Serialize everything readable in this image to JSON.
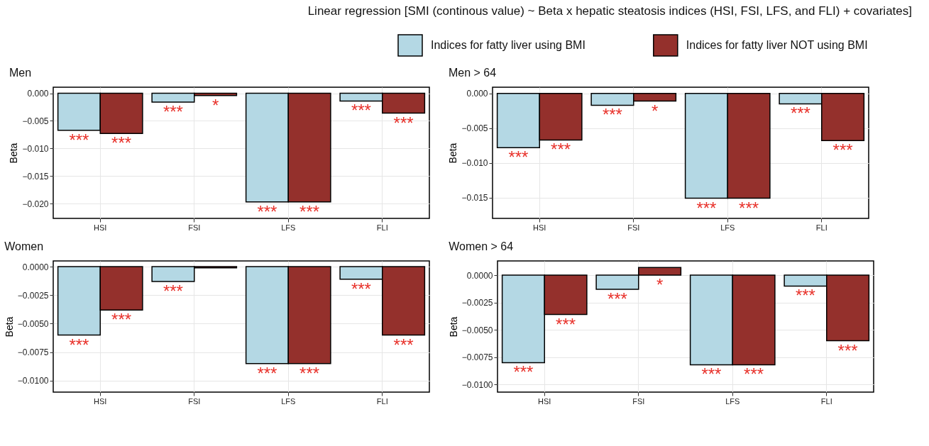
{
  "chart_data": [
    {
      "type": "bar",
      "title": "Men",
      "ylabel": "Beta",
      "annotations": [
        "Linear regression [SMI (continous value) ~ Beta x hepatic steatosis indices (HSI, FSI, LFS, and FLI) + covariates]"
      ],
      "legend": "top right",
      "grid": true,
      "categories": [
        "HSI",
        "FSI",
        "LFS",
        "FLI"
      ],
      "series": [
        {
          "name": "Indices for fatty liver using BMI",
          "color": "#b4d8e4",
          "values": [
            -0.0067,
            -0.0016,
            -0.0197,
            -0.0014
          ],
          "value_labels": [
            "***",
            "***",
            "***",
            "***"
          ]
        },
        {
          "name": "Indices for fatty liver NOT using BMI",
          "color": "#94302c",
          "values": [
            -0.0073,
            -0.0004,
            -0.0197,
            -0.0036
          ],
          "value_labels": [
            "***",
            "*",
            "***",
            "***"
          ]
        }
      ],
      "ylim": [
        -0.0227,
        0.0011
      ],
      "yticks": [
        {
          "value": 0,
          "label": "0.000"
        },
        {
          "value": -0.005,
          "label": "−0.005"
        },
        {
          "value": -0.01,
          "label": "−0.010"
        },
        {
          "value": -0.015,
          "label": "−0.015"
        },
        {
          "value": -0.02,
          "label": "−0.020"
        }
      ]
    },
    {
      "type": "bar",
      "title": "Men > 64",
      "ylabel": "Beta",
      "grid": true,
      "categories": [
        "HSI",
        "FSI",
        "LFS",
        "FLI"
      ],
      "series": [
        {
          "color": "#b4d8e4",
          "values": [
            -0.0078,
            -0.0017,
            -0.0151,
            -0.0015
          ],
          "value_labels": [
            "***",
            "***",
            "***",
            "***"
          ]
        },
        {
          "color": "#94302c",
          "values": [
            -0.0067,
            -0.0011,
            -0.0151,
            -0.0068
          ],
          "value_labels": [
            "***",
            "*",
            "***",
            "***"
          ]
        }
      ],
      "ylim": [
        -0.018,
        0.0009
      ],
      "yticks": [
        {
          "value": 0,
          "label": "0.000"
        },
        {
          "value": -0.005,
          "label": "−0.005"
        },
        {
          "value": -0.01,
          "label": "−0.010"
        },
        {
          "value": -0.015,
          "label": "−0.015"
        }
      ]
    },
    {
      "type": "bar",
      "title": "Women",
      "ylabel": "Beta",
      "grid": true,
      "categories": [
        "HSI",
        "FSI",
        "LFS",
        "FLI"
      ],
      "series": [
        {
          "color": "#b4d8e4",
          "values": [
            -0.006,
            -0.0013,
            -0.0085,
            -0.0011
          ],
          "value_labels": [
            "***",
            "***",
            "***",
            "***"
          ]
        },
        {
          "color": "#94302c",
          "values": [
            -0.0038,
            -0.0001,
            -0.0085,
            -0.006
          ],
          "value_labels": [
            "***",
            null,
            "***",
            "***"
          ]
        }
      ],
      "ylim": [
        -0.011,
        0.0005
      ],
      "yticks": [
        {
          "value": 0,
          "label": "0.0000"
        },
        {
          "value": -0.0025,
          "label": "−0.0025"
        },
        {
          "value": -0.005,
          "label": "−0.0050"
        },
        {
          "value": -0.0075,
          "label": "−0.0075"
        },
        {
          "value": -0.01,
          "label": "−0.0100"
        }
      ]
    },
    {
      "type": "bar",
      "title": "Women > 64",
      "ylabel": "Beta",
      "grid": true,
      "categories": [
        "HSI",
        "FSI",
        "LFS",
        "FLI"
      ],
      "series": [
        {
          "color": "#b4d8e4",
          "values": [
            -0.008,
            -0.0013,
            -0.0082,
            -0.001
          ],
          "value_labels": [
            "***",
            "***",
            "***",
            "***"
          ]
        },
        {
          "color": "#94302c",
          "values": [
            -0.0036,
            0.0007,
            -0.0082,
            -0.006
          ],
          "value_labels": [
            "***",
            "*",
            "***",
            "***"
          ]
        }
      ],
      "ylim": [
        -0.0107,
        0.0013
      ],
      "yticks": [
        {
          "value": 0,
          "label": "0.0000"
        },
        {
          "value": -0.0025,
          "label": "−0.0025"
        },
        {
          "value": -0.005,
          "label": "−0.0050"
        },
        {
          "value": -0.0075,
          "label": "−0.0075"
        },
        {
          "value": -0.01,
          "label": "−0.0100"
        }
      ]
    }
  ]
}
